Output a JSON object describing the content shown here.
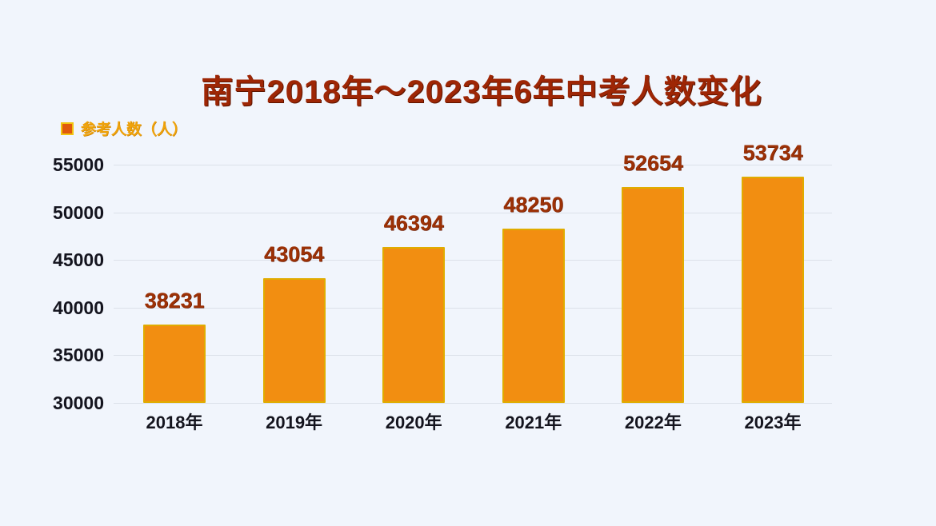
{
  "title": "南宁2018年～2023年6年中考人数变化",
  "legend": {
    "label": "参考人数（人）",
    "swatch_color": "#e05a0c",
    "swatch_border_color": "#f2c410"
  },
  "colors": {
    "background": "#f1f5fc",
    "bar_fill": "#f28e11",
    "bar_border": "#e0ac00",
    "value_label": "#9c3106",
    "title_text": "#9e2605",
    "axis_label": "#14141e",
    "gridline": "#dce1e9",
    "legend_text": "#f0a30a"
  },
  "chart_data": {
    "type": "bar",
    "title": "南宁2018年～2023年6年中考人数变化",
    "series_name": "参考人数（人）",
    "categories": [
      "2018年",
      "2019年",
      "2020年",
      "2021年",
      "2022年",
      "2023年"
    ],
    "values": [
      38231,
      43054,
      46394,
      48250,
      52654,
      53734
    ],
    "value_labels": [
      "38231",
      "43054",
      "46394",
      "48250",
      "52654",
      "53734"
    ],
    "y_ticks": [
      30000,
      35000,
      40000,
      45000,
      50000,
      55000
    ],
    "y_tick_labels": [
      "30000",
      "35000",
      "40000",
      "45000",
      "50000",
      "55000"
    ],
    "ylim": [
      30000,
      55000
    ],
    "grid": true,
    "legend_position": "top-left",
    "xlabel": "",
    "ylabel": ""
  }
}
